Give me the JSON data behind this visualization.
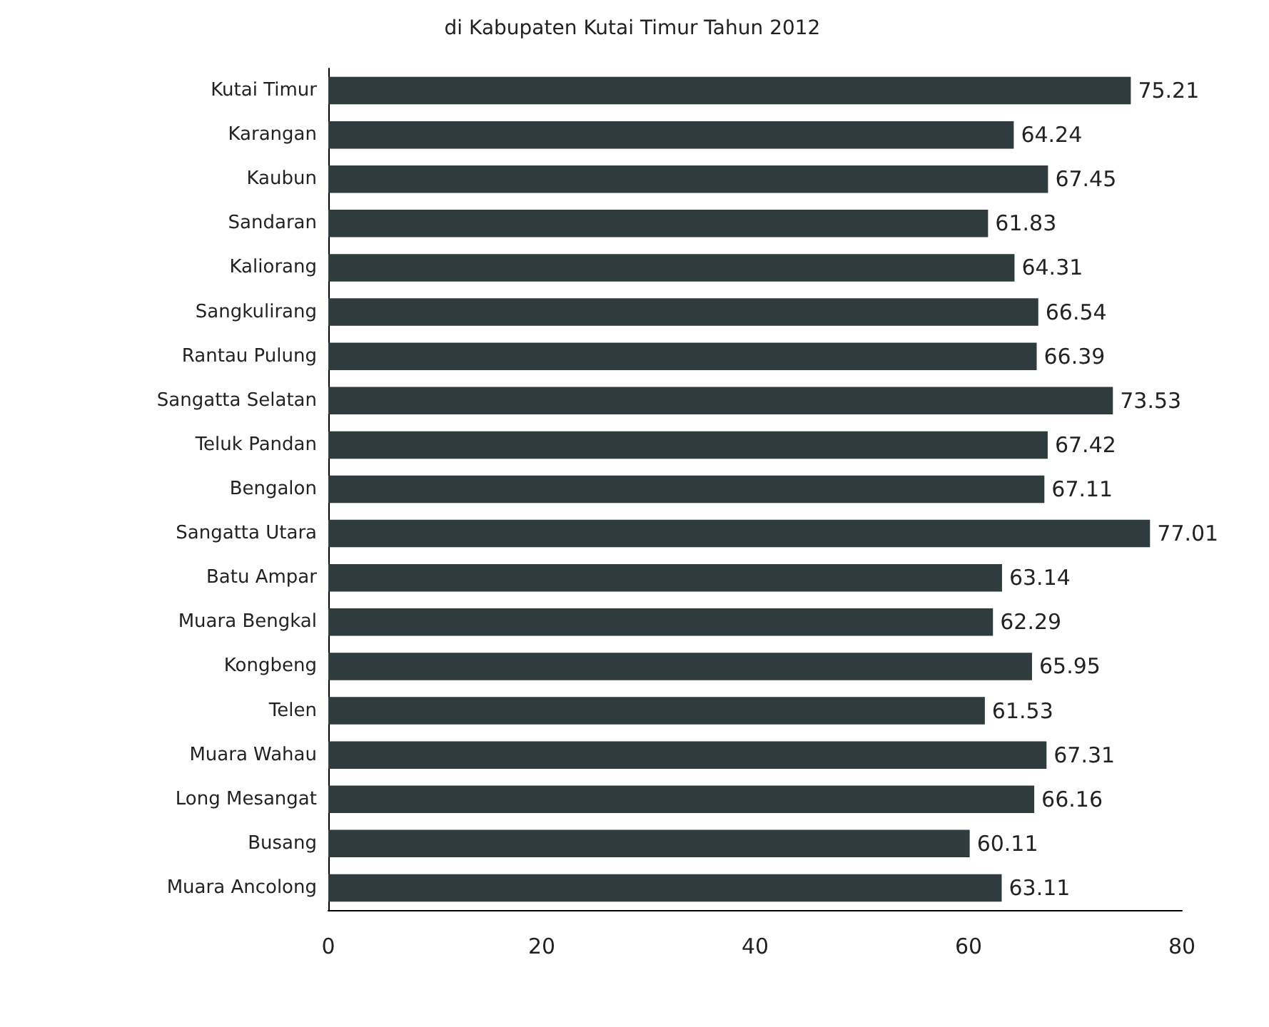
{
  "chart_data": {
    "type": "bar",
    "title": "di Kabupaten Kutai Timur Tahun 2012",
    "orientation": "horizontal",
    "categories": [
      "Kutai Timur",
      "Karangan",
      "Kaubun",
      "Sandaran",
      "Kaliorang",
      "Sangkulirang",
      "Rantau Pulung",
      "Sangatta Selatan",
      "Teluk Pandan",
      "Bengalon",
      "Sangatta Utara",
      "Batu Ampar",
      "Muara Bengkal",
      "Kongbeng",
      "Telen",
      "Muara Wahau",
      "Long Mesangat",
      "Busang",
      "Muara Ancolong"
    ],
    "values": [
      75.21,
      64.24,
      67.45,
      61.83,
      64.31,
      66.54,
      66.39,
      73.53,
      67.42,
      67.11,
      77.01,
      63.14,
      62.29,
      65.95,
      61.53,
      67.31,
      66.16,
      60.11,
      63.11
    ],
    "color": "#2f3b3c",
    "xlim": [
      0,
      80
    ],
    "xticks": [
      0,
      20,
      40,
      60,
      80
    ],
    "data_labels": true
  }
}
